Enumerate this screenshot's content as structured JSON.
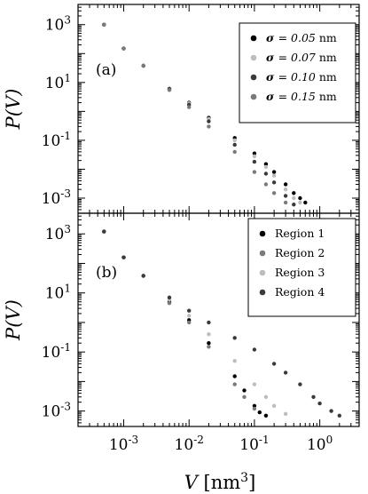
{
  "chart_data": [
    {
      "type": "scatter",
      "panel_label": "(a)",
      "ylabel": "P(V)",
      "xlabel": "V [nm3]",
      "xscale": "log",
      "yscale": "log",
      "xlim": [
        0.0002,
        4
      ],
      "ylim": [
        0.0003,
        5000
      ],
      "xticks": [
        "10^-3",
        "10^-2",
        "10^-1",
        "10^0"
      ],
      "yticks": [
        "10^-3",
        "10^-1",
        "10^1",
        "10^3"
      ],
      "grid": false,
      "legend_position": "top-right",
      "series": [
        {
          "name": "σ = 0.05 nm",
          "legend_sym": "σ",
          "legend_value": "= 0.05",
          "legend_unit": "nm",
          "color": "#000000",
          "x": [
            0.0005,
            0.001,
            0.002,
            0.005,
            0.01,
            0.02,
            0.05,
            0.1,
            0.15,
            0.2,
            0.3,
            0.4,
            0.5,
            0.6
          ],
          "y": [
            1000,
            150,
            38,
            6,
            2,
            0.6,
            0.12,
            0.035,
            0.015,
            0.008,
            0.003,
            0.0015,
            0.001,
            0.0007
          ]
        },
        {
          "name": "σ = 0.07 nm",
          "legend_sym": "σ",
          "legend_value": "= 0.07",
          "legend_unit": "nm",
          "color": "#bdbdbd",
          "x": [
            0.0005,
            0.001,
            0.002,
            0.005,
            0.01,
            0.02,
            0.05,
            0.1,
            0.15,
            0.2,
            0.3,
            0.4,
            0.5
          ],
          "y": [
            1000,
            150,
            38,
            6,
            1.9,
            0.55,
            0.1,
            0.028,
            0.012,
            0.006,
            0.002,
            0.001,
            0.0007
          ]
        },
        {
          "name": "σ = 0.10 nm",
          "legend_sym": "σ",
          "legend_value": "= 0.10",
          "legend_unit": "nm",
          "color": "#3a3a3a",
          "x": [
            0.0005,
            0.001,
            0.002,
            0.005,
            0.01,
            0.02,
            0.05,
            0.1,
            0.15,
            0.2,
            0.3,
            0.4
          ],
          "y": [
            1000,
            150,
            38,
            6,
            1.7,
            0.45,
            0.07,
            0.018,
            0.007,
            0.0035,
            0.0012,
            0.0006
          ]
        },
        {
          "name": "σ = 0.15 nm",
          "legend_sym": "σ",
          "legend_value": "= 0.15",
          "legend_unit": "nm",
          "color": "#7a7a7a",
          "x": [
            0.0005,
            0.001,
            0.002,
            0.005,
            0.01,
            0.02,
            0.05,
            0.1,
            0.15,
            0.2,
            0.3
          ],
          "y": [
            1000,
            150,
            38,
            5.5,
            1.4,
            0.3,
            0.04,
            0.008,
            0.003,
            0.0015,
            0.0007
          ]
        }
      ]
    },
    {
      "type": "scatter",
      "panel_label": "(b)",
      "ylabel": "P(V)",
      "xlabel": "V [nm3]",
      "xscale": "log",
      "yscale": "log",
      "xlim": [
        0.0002,
        4
      ],
      "ylim": [
        0.0003,
        5000
      ],
      "xticks": [
        "10^-3",
        "10^-2",
        "10^-1",
        "10^0"
      ],
      "yticks": [
        "10^-3",
        "10^-1",
        "10^1",
        "10^3"
      ],
      "grid": false,
      "legend_position": "top-right",
      "series": [
        {
          "name": "Region 1",
          "color": "#000000",
          "x": [
            0.0005,
            0.001,
            0.002,
            0.005,
            0.01,
            0.02,
            0.05,
            0.07,
            0.1,
            0.12,
            0.15
          ],
          "y": [
            1200,
            160,
            38,
            5,
            1.2,
            0.2,
            0.015,
            0.005,
            0.0015,
            0.0009,
            0.0007
          ]
        },
        {
          "name": "Region 2",
          "color": "#7a7a7a",
          "x": [
            0.0005,
            0.001,
            0.002,
            0.005,
            0.01,
            0.02,
            0.05,
            0.07,
            0.1
          ],
          "y": [
            1200,
            160,
            38,
            4.5,
            1,
            0.15,
            0.008,
            0.003,
            0.0012
          ]
        },
        {
          "name": "Region 3",
          "color": "#bdbdbd",
          "x": [
            0.0005,
            0.001,
            0.002,
            0.005,
            0.01,
            0.02,
            0.05,
            0.1,
            0.15,
            0.2,
            0.3
          ],
          "y": [
            1200,
            160,
            38,
            6,
            1.7,
            0.4,
            0.05,
            0.008,
            0.003,
            0.0015,
            0.0008
          ]
        },
        {
          "name": "Region 4",
          "color": "#3a3a3a",
          "x": [
            0.0005,
            0.001,
            0.002,
            0.005,
            0.01,
            0.02,
            0.05,
            0.1,
            0.2,
            0.3,
            0.5,
            0.8,
            1,
            1.5,
            2
          ],
          "y": [
            1200,
            160,
            38,
            7,
            2.5,
            1,
            0.3,
            0.12,
            0.04,
            0.02,
            0.008,
            0.003,
            0.0018,
            0.001,
            0.0007
          ]
        }
      ]
    }
  ]
}
